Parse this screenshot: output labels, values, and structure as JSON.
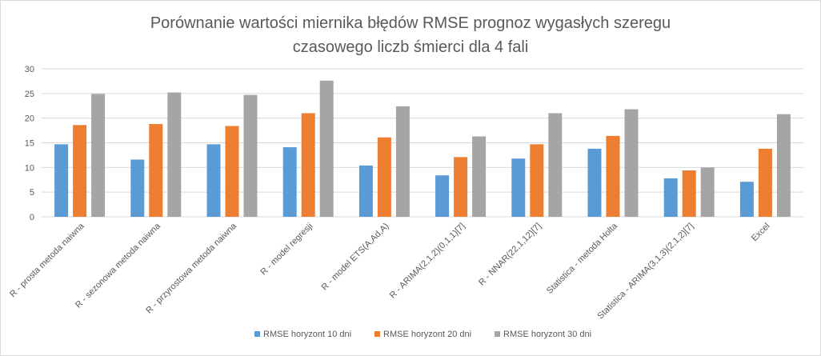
{
  "chart_data": {
    "type": "bar",
    "title_lines": [
      "Porównanie wartości miernika błędów RMSE prognoz wygasłych szeregu",
      "czasowego liczb śmierci dla 4 fali"
    ],
    "categories": [
      "R - prosta metoda naiwna",
      "R - sezonowa metoda naiwna",
      "R - przyrostowa metoda naiwna",
      "R - model regresji",
      "R - model ETS(A,Ad,A)",
      "R - ARIMA(2,1,2)(0,1,1)[7]",
      "R - NNAR(22,1,12)[7]",
      "Statistica - metoda Holta",
      "Statistica - ARIMA(3,1,3)(2,1,2)[7]",
      "Excel"
    ],
    "series": [
      {
        "name": "RMSE horyzont 10 dni",
        "color": "#5b9bd5",
        "values": [
          14.7,
          11.6,
          14.7,
          14.1,
          10.4,
          8.4,
          11.8,
          13.8,
          7.8,
          7.1
        ]
      },
      {
        "name": "RMSE horyzont 20 dni",
        "color": "#ed7d31",
        "values": [
          18.6,
          18.8,
          18.4,
          21.0,
          16.1,
          12.1,
          14.7,
          16.4,
          9.4,
          13.8
        ]
      },
      {
        "name": "RMSE horyzont 30 dni",
        "color": "#a5a5a5",
        "values": [
          24.9,
          25.2,
          24.7,
          27.6,
          22.4,
          16.3,
          21.0,
          21.8,
          10.0,
          20.8
        ]
      }
    ],
    "yticks": [
      "0",
      "5",
      "10",
      "15",
      "20",
      "25",
      "30"
    ],
    "ylim": [
      0,
      30
    ],
    "grid": true,
    "legend_position": "bottom"
  }
}
